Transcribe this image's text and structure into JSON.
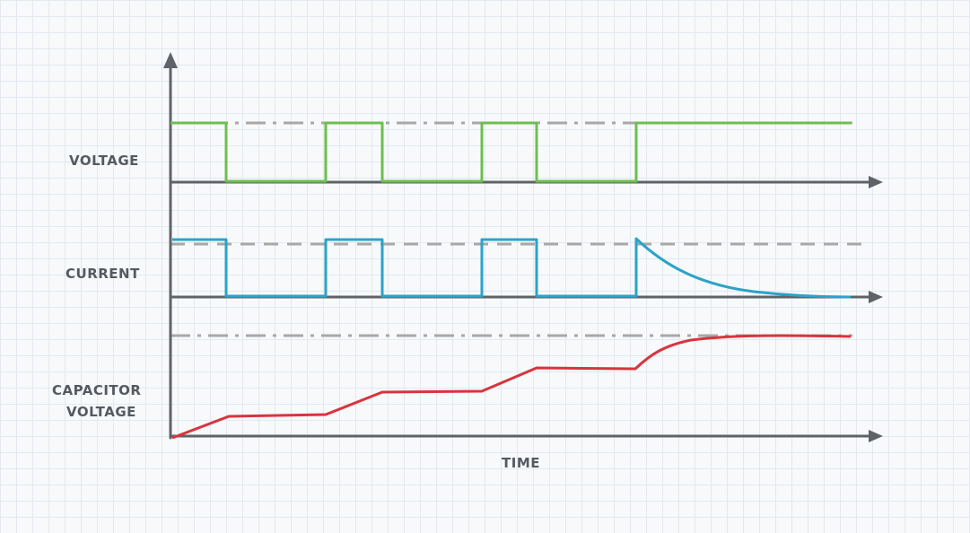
{
  "labels": {
    "voltage": "VOLTAGE",
    "current": "CURRENT",
    "capacitor_line1": "CAPACITOR",
    "capacitor_line2": "VOLTAGE",
    "time": "TIME"
  },
  "colors": {
    "axis": "#5f6368",
    "voltage": "#6cbf4f",
    "current": "#2ba3c9",
    "capacitor": "#d9343e",
    "reference": "#a8a8a8"
  }
}
